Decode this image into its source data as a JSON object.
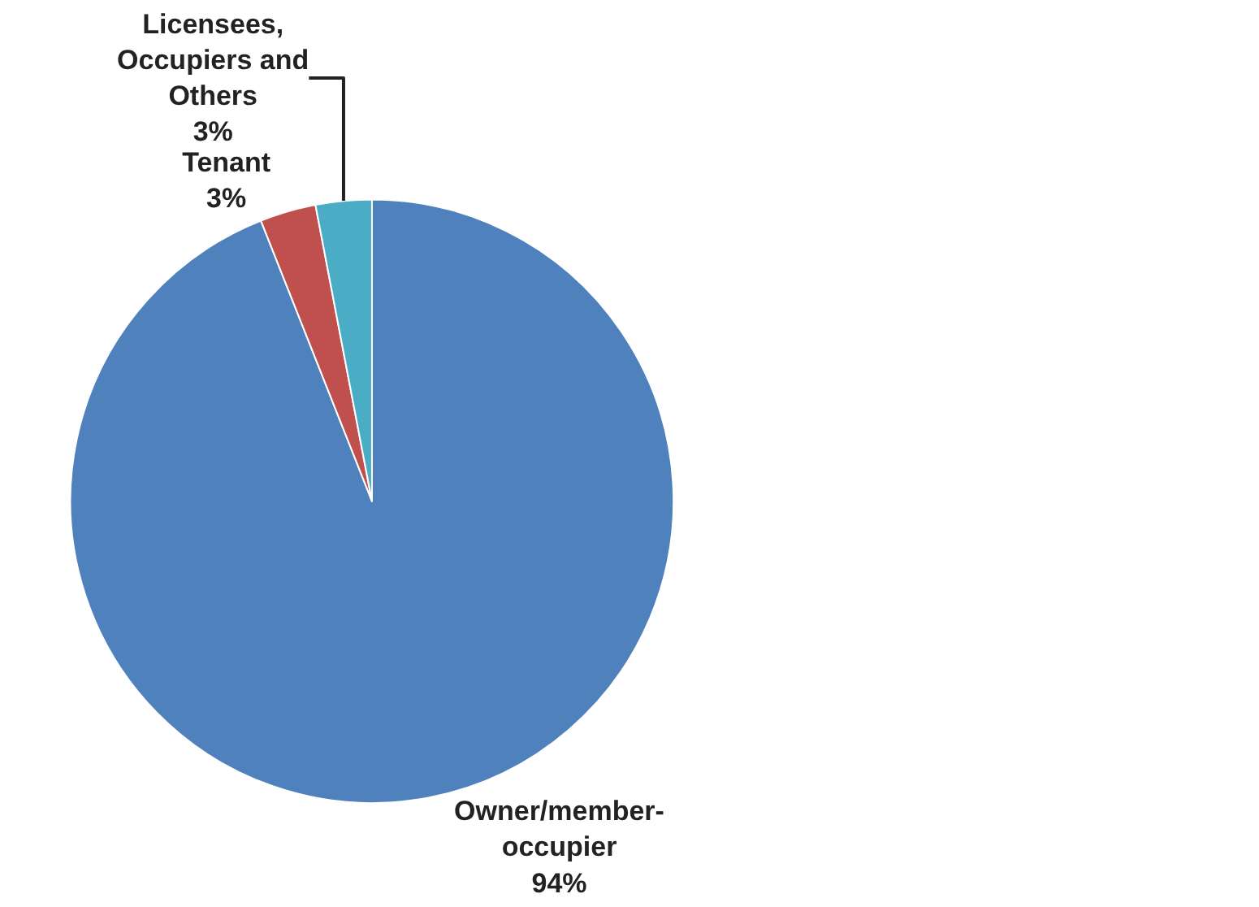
{
  "chart_data": {
    "type": "pie",
    "categories": [
      "Owner/member-occupier",
      "Tenant",
      "Licensees, Occupiers and Others"
    ],
    "values": [
      94,
      3,
      3
    ],
    "value_labels": [
      "94%",
      "3%",
      "3%"
    ],
    "colors": [
      "#4f81bd",
      "#c0504d",
      "#4bacc6"
    ],
    "legend": false
  }
}
